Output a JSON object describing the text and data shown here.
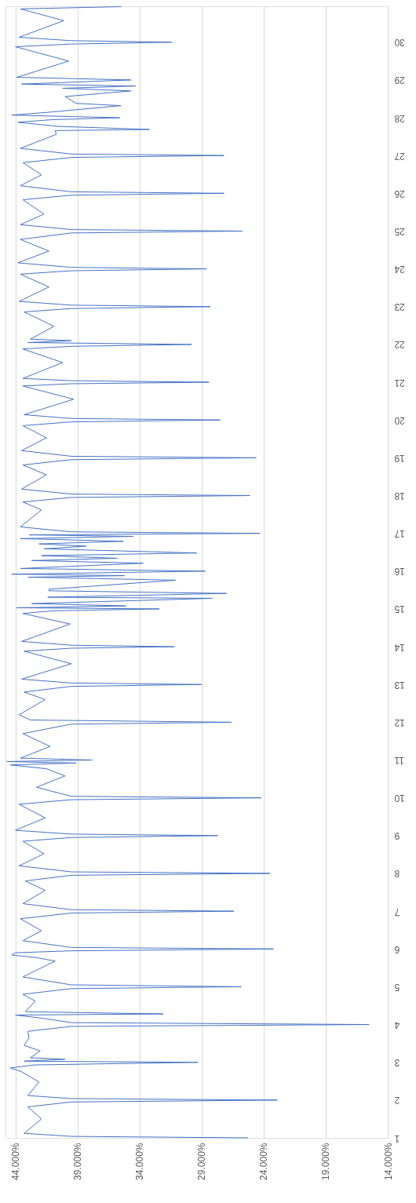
{
  "chart_data": {
    "type": "line",
    "orientation": "horizontal",
    "grid": "x",
    "marker": "none",
    "line_style": "solid",
    "xlim": [
      44.8,
      14
    ],
    "xticks": [
      {
        "value": 44,
        "label": "44.000%"
      },
      {
        "value": 39,
        "label": "39.000%"
      },
      {
        "value": 34,
        "label": "34.000%"
      },
      {
        "value": 29,
        "label": "29.000%"
      },
      {
        "value": 24,
        "label": "24.000%"
      },
      {
        "value": 19,
        "label": "19.000%"
      },
      {
        "value": 14,
        "label": "14.000%"
      }
    ],
    "ylim": [
      1,
      30.95
    ],
    "yticks": [
      1,
      2,
      3,
      4,
      5,
      6,
      7,
      8,
      9,
      10,
      11,
      12,
      13,
      14,
      15,
      16,
      17,
      18,
      19,
      20,
      21,
      22,
      23,
      24,
      25,
      26,
      27,
      28,
      29,
      30
    ],
    "series": [
      {
        "color": "#4472c4",
        "x": [
          1.0,
          1.04,
          1.12,
          1.5,
          1.82,
          1.95,
          2.0,
          2.04,
          2.12,
          2.48,
          2.75,
          2.85,
          2.93,
          3.0,
          3.03,
          3.08,
          3.12,
          3.3,
          3.45,
          3.65,
          3.82,
          3.95,
          4.0,
          4.05,
          4.17,
          4.25,
          4.28,
          4.34,
          4.62,
          4.8,
          4.95,
          5.0,
          5.05,
          5.26,
          5.55,
          5.68,
          5.77,
          5.84,
          5.9,
          5.95,
          6.0,
          6.04,
          6.22,
          6.48,
          6.8,
          6.95,
          7.0,
          7.04,
          7.2,
          7.55,
          7.8,
          7.95,
          8.0,
          8.04,
          8.2,
          8.52,
          8.85,
          8.95,
          9.0,
          9.04,
          9.14,
          9.47,
          9.83,
          9.95,
          10.0,
          10.04,
          10.28,
          10.58,
          10.77,
          10.87,
          10.92,
          10.96,
          11.0,
          11.05,
          11.36,
          11.7,
          11.95,
          12.0,
          12.06,
          12.2,
          12.6,
          12.8,
          12.95,
          13.0,
          13.04,
          13.14,
          13.55,
          13.88,
          13.96,
          14.0,
          14.04,
          14.14,
          14.6,
          14.88,
          14.95,
          15.0,
          15.03,
          15.08,
          15.14,
          15.28,
          15.31,
          15.41,
          15.48,
          15.52,
          15.76,
          15.84,
          15.88,
          15.92,
          16.0,
          16.07,
          16.21,
          16.28,
          16.34,
          16.41,
          16.48,
          16.59,
          16.66,
          16.72,
          16.79,
          16.86,
          16.92,
          16.96,
          17.0,
          17.04,
          17.17,
          17.62,
          17.83,
          17.95,
          18.0,
          18.04,
          18.17,
          18.55,
          18.81,
          18.95,
          19.0,
          19.04,
          19.19,
          19.53,
          19.85,
          19.95,
          20.0,
          20.04,
          20.14,
          20.55,
          20.9,
          20.96,
          21.0,
          21.04,
          21.1,
          21.52,
          21.88,
          21.95,
          22.0,
          22.05,
          22.1,
          22.14,
          22.48,
          22.86,
          22.95,
          23.0,
          23.04,
          23.14,
          23.52,
          23.86,
          23.95,
          24.0,
          24.04,
          24.16,
          24.47,
          24.78,
          24.95,
          25.0,
          25.04,
          25.17,
          25.45,
          25.83,
          25.95,
          26.0,
          26.04,
          26.2,
          26.49,
          26.81,
          26.95,
          27.0,
          27.04,
          27.19,
          27.56,
          27.66,
          27.69,
          27.77,
          27.88,
          27.95,
          28.0,
          28.07,
          28.14,
          28.32,
          28.38,
          28.56,
          28.71,
          28.78,
          28.84,
          28.89,
          29.0,
          29.07,
          29.5,
          29.88,
          29.95,
          30.0,
          30.04,
          30.13,
          30.57,
          30.88,
          30.94
        ],
        "values": [
          25.3,
          39.5,
          43.3,
          41.9,
          43.0,
          39.5,
          22.9,
          39.5,
          43.0,
          42.1,
          43.5,
          44.4,
          42.5,
          29.3,
          43.3,
          40.0,
          42.8,
          42.0,
          43.3,
          42.9,
          43.0,
          39.5,
          15.5,
          39.5,
          41.9,
          44.0,
          32.1,
          43.2,
          42.4,
          43.4,
          39.5,
          25.8,
          39.5,
          43.4,
          41.6,
          40.8,
          42.3,
          44.3,
          44.0,
          39.5,
          23.2,
          39.5,
          43.4,
          41.9,
          43.6,
          39.5,
          26.4,
          39.5,
          43.4,
          41.6,
          43.2,
          39.5,
          23.5,
          39.5,
          43.7,
          41.7,
          43.4,
          39.5,
          27.7,
          39.5,
          44.0,
          41.6,
          43.7,
          39.5,
          24.2,
          39.5,
          42.3,
          40.0,
          41.5,
          44.4,
          39.1,
          44.7,
          37.8,
          43.6,
          41.2,
          43.4,
          39.5,
          26.6,
          42.8,
          43.7,
          41.6,
          43.3,
          39.5,
          29.0,
          39.5,
          43.5,
          39.5,
          43.3,
          39.5,
          31.2,
          39.5,
          43.5,
          39.6,
          43.4,
          41.0,
          32.4,
          43.9,
          35.1,
          42.7,
          28.1,
          41.4,
          27.0,
          41.3,
          41.3,
          31.1,
          43.0,
          35.2,
          44.3,
          28.7,
          43.6,
          33.7,
          42.7,
          35.8,
          41.9,
          29.4,
          41.7,
          38.3,
          42.1,
          35.3,
          43.6,
          34.5,
          42.9,
          24.3,
          39.5,
          43.6,
          41.9,
          43.4,
          39.5,
          25.1,
          39.5,
          43.5,
          41.5,
          43.4,
          39.5,
          24.6,
          39.5,
          43.5,
          41.5,
          43.4,
          39.5,
          27.5,
          39.5,
          43.3,
          39.3,
          43.4,
          39.5,
          28.4,
          39.5,
          43.4,
          40.2,
          43.4,
          39.5,
          29.8,
          43.0,
          39.5,
          42.8,
          40.9,
          43.3,
          39.5,
          28.3,
          39.5,
          43.7,
          41.3,
          43.6,
          39.5,
          28.6,
          39.5,
          43.8,
          41.3,
          43.6,
          39.5,
          25.7,
          39.5,
          43.6,
          41.7,
          43.4,
          39.5,
          27.2,
          39.5,
          43.6,
          41.9,
          43.4,
          39.5,
          27.2,
          39.5,
          43.6,
          40.7,
          40.8,
          33.2,
          40.5,
          43.8,
          41.0,
          35.6,
          44.3,
          41.5,
          35.5,
          39.1,
          40.0,
          34.7,
          40.2,
          34.3,
          43.5,
          34.7,
          43.9,
          39.7,
          44.0,
          39.5,
          31.4,
          39.5,
          43.7,
          40.1,
          43.6,
          35.5
        ]
      }
    ]
  }
}
